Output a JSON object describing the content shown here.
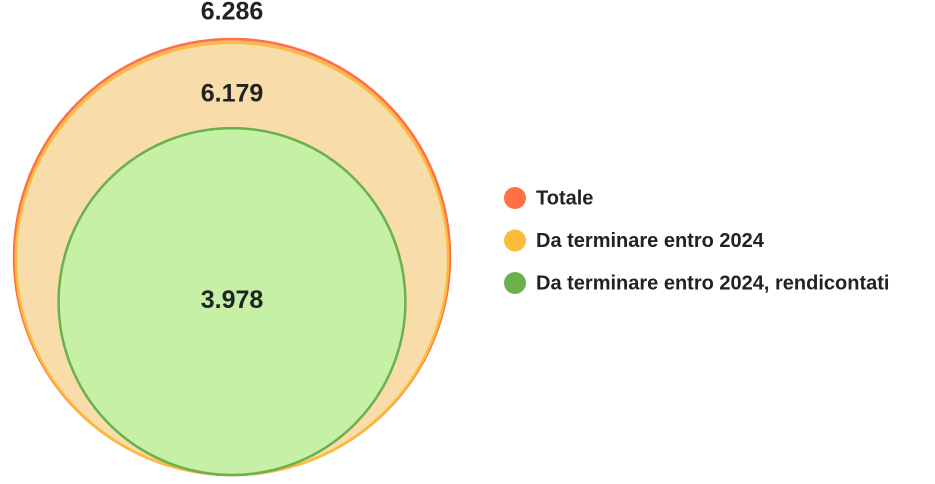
{
  "chart_data": {
    "type": "nested-circles",
    "categories": [
      "Totale",
      "Da terminare entro 2024",
      "Da terminare entro 2024, rendicontati"
    ],
    "values": [
      6286,
      6179,
      3978
    ],
    "value_labels": [
      "6.286",
      "6.179",
      "3.978"
    ],
    "colors": [
      "#ff7043",
      "#fbbc3c",
      "#6ab04c"
    ],
    "fill_colors": [
      "#f7b08f",
      "#f8ddab",
      "#c6f0a6"
    ],
    "legend": "right"
  }
}
